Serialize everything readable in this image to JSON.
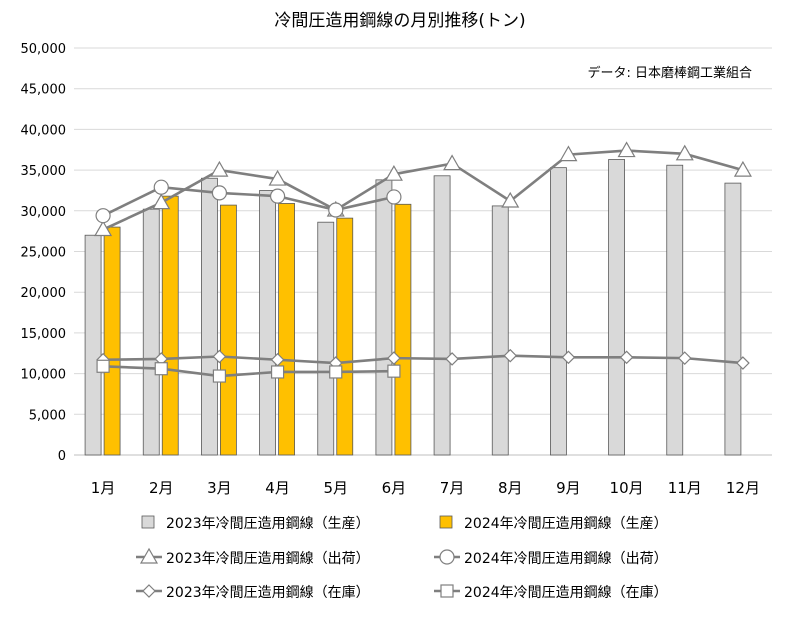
{
  "chart_data": {
    "type": "bar",
    "title": "冷間圧造用鋼線の月別推移(トン)",
    "source_note": "データ: 日本磨棒鋼工業組合",
    "categories": [
      "1月",
      "2月",
      "3月",
      "4月",
      "5月",
      "6月",
      "7月",
      "8月",
      "9月",
      "10月",
      "11月",
      "12月"
    ],
    "ylim": [
      0,
      50000
    ],
    "yticks": [
      0,
      5000,
      10000,
      15000,
      20000,
      25000,
      30000,
      35000,
      40000,
      45000,
      50000
    ],
    "ytick_labels": [
      "0",
      "5,000",
      "10,000",
      "15,000",
      "20,000",
      "25,000",
      "30,000",
      "35,000",
      "40,000",
      "45,000",
      "50,000"
    ],
    "grid": true,
    "legend_position": "bottom",
    "bar_series": [
      {
        "name": "2023年冷間圧造用鋼線（生産）",
        "color": "#d9d9d9",
        "values": [
          27000,
          30200,
          34000,
          32500,
          28600,
          33800,
          34300,
          30600,
          35300,
          36300,
          35600,
          33400
        ]
      },
      {
        "name": "2024年冷間圧造用鋼線（生産）",
        "color": "#ffc000",
        "values": [
          28000,
          31800,
          30700,
          30900,
          29100,
          30800,
          null,
          null,
          null,
          null,
          null,
          null
        ]
      }
    ],
    "line_series": [
      {
        "name": "2023年冷間圧造用鋼線（出荷）",
        "marker": "triangle",
        "values": [
          27700,
          31000,
          35000,
          33900,
          30100,
          34500,
          35800,
          31200,
          36900,
          37400,
          37000,
          35000
        ]
      },
      {
        "name": "2024年冷間圧造用鋼線（出荷）",
        "marker": "circle",
        "values": [
          29400,
          32900,
          32200,
          31800,
          30100,
          31700,
          null,
          null,
          null,
          null,
          null,
          null
        ]
      },
      {
        "name": "2023年冷間圧造用鋼線（在庫）",
        "marker": "diamond",
        "values": [
          11700,
          11800,
          12100,
          11700,
          11300,
          11900,
          11800,
          12200,
          12000,
          12000,
          11900,
          11300
        ]
      },
      {
        "name": "2024年冷間圧造用鋼線（在庫）",
        "marker": "square",
        "values": [
          10900,
          10600,
          9700,
          10200,
          10200,
          10300,
          null,
          null,
          null,
          null,
          null,
          null
        ]
      }
    ],
    "colors": {
      "line": "#7f7f7f",
      "marker_fill": "#ffffff",
      "marker_stroke": "#7f7f7f",
      "grid": "#d9d9d9",
      "bar_stroke": "#595959"
    }
  }
}
